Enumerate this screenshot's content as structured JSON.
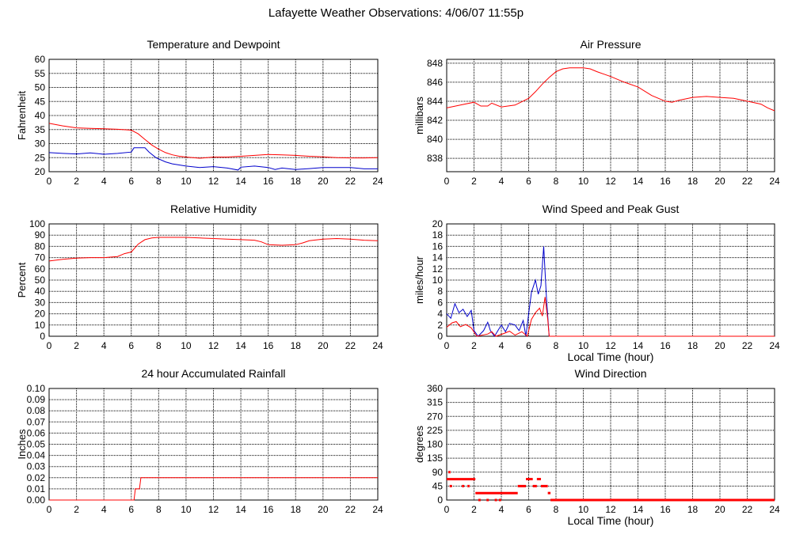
{
  "title": "Lafayette Weather Observations: 4/06/07 11:55p",
  "colors": {
    "red": "#ff0000",
    "blue": "#0000cc",
    "grid": "#000000",
    "background": "#ffffff"
  },
  "chart_data": [
    {
      "id": "temp",
      "type": "line",
      "title": "Temperature and Dewpoint",
      "xlabel": "",
      "ylabel": "Fahrenheit",
      "xlim": [
        0,
        24
      ],
      "ylim": [
        20,
        60
      ],
      "xticks": [
        0,
        2,
        4,
        6,
        8,
        10,
        12,
        14,
        16,
        18,
        20,
        22,
        24
      ],
      "yticks": [
        20,
        25,
        30,
        35,
        40,
        45,
        50,
        55,
        60
      ],
      "grid": true,
      "series": [
        {
          "color": "red",
          "points": [
            [
              0,
              37.2
            ],
            [
              1,
              36.3
            ],
            [
              2,
              35.6
            ],
            [
              3,
              35.4
            ],
            [
              4,
              35.3
            ],
            [
              5,
              35.1
            ],
            [
              6,
              34.8
            ],
            [
              6.5,
              33.5
            ],
            [
              7,
              31.5
            ],
            [
              7.5,
              29.5
            ],
            [
              8,
              28
            ],
            [
              8.5,
              26.8
            ],
            [
              9,
              26
            ],
            [
              9.5,
              25.5
            ],
            [
              10,
              25.2
            ],
            [
              11,
              24.8
            ],
            [
              12,
              25.2
            ],
            [
              13,
              25.2
            ],
            [
              14,
              25.5
            ],
            [
              15,
              25.8
            ],
            [
              16,
              26.1
            ],
            [
              17,
              26
            ],
            [
              18,
              25.8
            ],
            [
              19,
              25.5
            ],
            [
              20,
              25.3
            ],
            [
              21,
              25
            ],
            [
              22,
              24.9
            ],
            [
              23,
              24.9
            ],
            [
              24,
              25
            ]
          ]
        },
        {
          "color": "blue",
          "points": [
            [
              0,
              26.8
            ],
            [
              1,
              26.5
            ],
            [
              2,
              26.3
            ],
            [
              3,
              26.7
            ],
            [
              4,
              26.2
            ],
            [
              5,
              26.5
            ],
            [
              6,
              27
            ],
            [
              6.2,
              28.5
            ],
            [
              7,
              28.5
            ],
            [
              7.3,
              27
            ],
            [
              7.8,
              25
            ],
            [
              8.5,
              23.5
            ],
            [
              9,
              22.8
            ],
            [
              10,
              22
            ],
            [
              11,
              21.5
            ],
            [
              12,
              21.8
            ],
            [
              13,
              21.3
            ],
            [
              13.8,
              20.6
            ],
            [
              14,
              21.6
            ],
            [
              15,
              22
            ],
            [
              16,
              21.5
            ],
            [
              16.5,
              20.8
            ],
            [
              17,
              21.3
            ],
            [
              18,
              20.8
            ],
            [
              19,
              21.1
            ],
            [
              20,
              21.5
            ],
            [
              21,
              21.5
            ],
            [
              22,
              21.5
            ],
            [
              23,
              21
            ],
            [
              24,
              21
            ]
          ]
        }
      ]
    },
    {
      "id": "pressure",
      "type": "line",
      "title": "Air Pressure",
      "xlabel": "",
      "ylabel": "millibars",
      "xlim": [
        0,
        24
      ],
      "ylim": [
        836.6,
        848.4
      ],
      "xticks": [
        0,
        2,
        4,
        6,
        8,
        10,
        12,
        14,
        16,
        18,
        20,
        22,
        24
      ],
      "yticks": [
        838,
        840,
        842,
        844,
        846,
        848
      ],
      "grid": true,
      "series": [
        {
          "color": "red",
          "points": [
            [
              0,
              843.3
            ],
            [
              1,
              843.6
            ],
            [
              2,
              843.9
            ],
            [
              2.5,
              843.5
            ],
            [
              3,
              843.5
            ],
            [
              3.3,
              843.8
            ],
            [
              4,
              843.4
            ],
            [
              5,
              843.6
            ],
            [
              6,
              844.3
            ],
            [
              6.5,
              845
            ],
            [
              7,
              845.8
            ],
            [
              7.5,
              846.5
            ],
            [
              8,
              847.1
            ],
            [
              8.5,
              847.4
            ],
            [
              9,
              847.5
            ],
            [
              10,
              847.5
            ],
            [
              10.5,
              847.4
            ],
            [
              11,
              847.1
            ],
            [
              12,
              846.6
            ],
            [
              13,
              846
            ],
            [
              14,
              845.5
            ],
            [
              15,
              844.6
            ],
            [
              16,
              844
            ],
            [
              16.5,
              843.9
            ],
            [
              17,
              844.1
            ],
            [
              18,
              844.4
            ],
            [
              19,
              844.5
            ],
            [
              20,
              844.4
            ],
            [
              21,
              844.3
            ],
            [
              22,
              844
            ],
            [
              23,
              843.7
            ],
            [
              23.5,
              843.3
            ],
            [
              24,
              843
            ]
          ]
        }
      ]
    },
    {
      "id": "humidity",
      "type": "line",
      "title": "Relative Humidity",
      "xlabel": "",
      "ylabel": "Percent",
      "xlim": [
        0,
        24
      ],
      "ylim": [
        0,
        100
      ],
      "xticks": [
        0,
        2,
        4,
        6,
        8,
        10,
        12,
        14,
        16,
        18,
        20,
        22,
        24
      ],
      "yticks": [
        0,
        10,
        20,
        30,
        40,
        50,
        60,
        70,
        80,
        90,
        100
      ],
      "grid": true,
      "series": [
        {
          "color": "red",
          "points": [
            [
              0,
              67
            ],
            [
              1,
              68.5
            ],
            [
              2,
              69.5
            ],
            [
              3,
              70
            ],
            [
              4,
              70
            ],
            [
              5,
              71
            ],
            [
              5.5,
              73.5
            ],
            [
              6,
              75
            ],
            [
              6.5,
              82
            ],
            [
              7,
              86
            ],
            [
              7.5,
              87.5
            ],
            [
              8,
              88
            ],
            [
              9,
              88
            ],
            [
              10,
              88
            ],
            [
              11,
              87.5
            ],
            [
              12,
              87
            ],
            [
              13,
              86.5
            ],
            [
              14,
              86
            ],
            [
              15,
              85.5
            ],
            [
              15.5,
              84
            ],
            [
              16,
              81.5
            ],
            [
              17,
              81
            ],
            [
              18,
              81.5
            ],
            [
              18.5,
              83
            ],
            [
              19,
              85
            ],
            [
              20,
              86.5
            ],
            [
              21,
              87
            ],
            [
              22,
              86.5
            ],
            [
              23,
              85.5
            ],
            [
              24,
              85
            ]
          ]
        }
      ]
    },
    {
      "id": "wind",
      "type": "line",
      "title": "Wind Speed and Peak Gust",
      "xlabel": "Local Time (hour)",
      "ylabel": "miles/hour",
      "xlim": [
        0,
        24
      ],
      "ylim": [
        0,
        20
      ],
      "xticks": [
        0,
        2,
        4,
        6,
        8,
        10,
        12,
        14,
        16,
        18,
        20,
        22,
        24
      ],
      "yticks": [
        0,
        2,
        4,
        6,
        8,
        10,
        12,
        14,
        16,
        18,
        20
      ],
      "grid": true,
      "series": [
        {
          "color": "blue",
          "points": [
            [
              0,
              4
            ],
            [
              0.3,
              3.2
            ],
            [
              0.6,
              5.8
            ],
            [
              0.9,
              4.2
            ],
            [
              1.2,
              4.8
            ],
            [
              1.5,
              3.5
            ],
            [
              1.8,
              4.6
            ],
            [
              2,
              1
            ],
            [
              2.3,
              0
            ],
            [
              2.7,
              1
            ],
            [
              3,
              2.5
            ],
            [
              3.2,
              1
            ],
            [
              3.5,
              0
            ],
            [
              3.8,
              1.2
            ],
            [
              4,
              2
            ],
            [
              4.3,
              0.8
            ],
            [
              4.6,
              2.3
            ],
            [
              5,
              2
            ],
            [
              5.3,
              1
            ],
            [
              5.6,
              2.8
            ],
            [
              5.8,
              0
            ],
            [
              6,
              4
            ],
            [
              6.2,
              7.8
            ],
            [
              6.5,
              10
            ],
            [
              6.7,
              7.5
            ],
            [
              6.9,
              9
            ],
            [
              7.1,
              16
            ],
            [
              7.3,
              7
            ],
            [
              7.5,
              0
            ],
            [
              24,
              0
            ]
          ]
        },
        {
          "color": "red",
          "points": [
            [
              0,
              1.6
            ],
            [
              0.4,
              2.4
            ],
            [
              0.7,
              2.6
            ],
            [
              1,
              1.7
            ],
            [
              1.4,
              2.1
            ],
            [
              1.8,
              1.5
            ],
            [
              2.2,
              0
            ],
            [
              3,
              0.4
            ],
            [
              3.3,
              0.8
            ],
            [
              3.6,
              0
            ],
            [
              4.2,
              0.5
            ],
            [
              4.6,
              0.9
            ],
            [
              5,
              0.2
            ],
            [
              5.5,
              0.8
            ],
            [
              5.9,
              0
            ],
            [
              6.2,
              3
            ],
            [
              6.5,
              4.2
            ],
            [
              6.8,
              5
            ],
            [
              7,
              3.6
            ],
            [
              7.2,
              7
            ],
            [
              7.4,
              3
            ],
            [
              7.5,
              0
            ],
            [
              24,
              0
            ]
          ]
        }
      ]
    },
    {
      "id": "rain",
      "type": "line",
      "title": "24 hour Accumulated Rainfall",
      "xlabel": "",
      "ylabel": "Inches",
      "xlim": [
        0,
        24
      ],
      "ylim": [
        0,
        0.1
      ],
      "xticks": [
        0,
        2,
        4,
        6,
        8,
        10,
        12,
        14,
        16,
        18,
        20,
        22,
        24
      ],
      "yticks": [
        "0.00",
        "0.01",
        "0.02",
        "0.03",
        "0.04",
        "0.05",
        "0.06",
        "0.07",
        "0.08",
        "0.09",
        "0.10"
      ],
      "grid": true,
      "series": [
        {
          "color": "red",
          "points": [
            [
              0,
              0
            ],
            [
              6.2,
              0
            ],
            [
              6.3,
              0.01
            ],
            [
              6.6,
              0.01
            ],
            [
              6.7,
              0.02
            ],
            [
              24,
              0.02
            ]
          ]
        }
      ]
    },
    {
      "id": "direction",
      "type": "scatter",
      "title": "Wind Direction",
      "xlabel": "Local Time (hour)",
      "ylabel": "degrees",
      "xlim": [
        0,
        24
      ],
      "ylim": [
        0,
        360
      ],
      "xticks": [
        0,
        2,
        4,
        6,
        8,
        10,
        12,
        14,
        16,
        18,
        20,
        22,
        24
      ],
      "yticks": [
        0,
        45,
        90,
        135,
        180,
        225,
        270,
        315,
        360
      ],
      "grid": true,
      "segments": [
        {
          "x": [
            0,
            2.1
          ],
          "y": 67.5
        },
        {
          "x": [
            2.1,
            5.2
          ],
          "y": 22.5
        },
        {
          "x": [
            5.2,
            5.8
          ],
          "y": 45
        },
        {
          "x": [
            5.8,
            6.3
          ],
          "y": 67.5
        },
        {
          "x": [
            6.3,
            6.6
          ],
          "y": 45
        },
        {
          "x": [
            6.6,
            6.9
          ],
          "y": 67.5
        },
        {
          "x": [
            6.9,
            7.4
          ],
          "y": 45
        },
        {
          "x": [
            7.4,
            7.6
          ],
          "y": 22.5
        },
        {
          "x": [
            7.6,
            24
          ],
          "y": 0
        }
      ],
      "dots": [
        [
          0.2,
          90
        ],
        [
          0.3,
          45
        ],
        [
          1.2,
          45
        ],
        [
          1.6,
          45
        ],
        [
          2.4,
          0
        ],
        [
          3.0,
          0
        ],
        [
          3.6,
          0
        ],
        [
          3.9,
          0
        ]
      ]
    }
  ]
}
